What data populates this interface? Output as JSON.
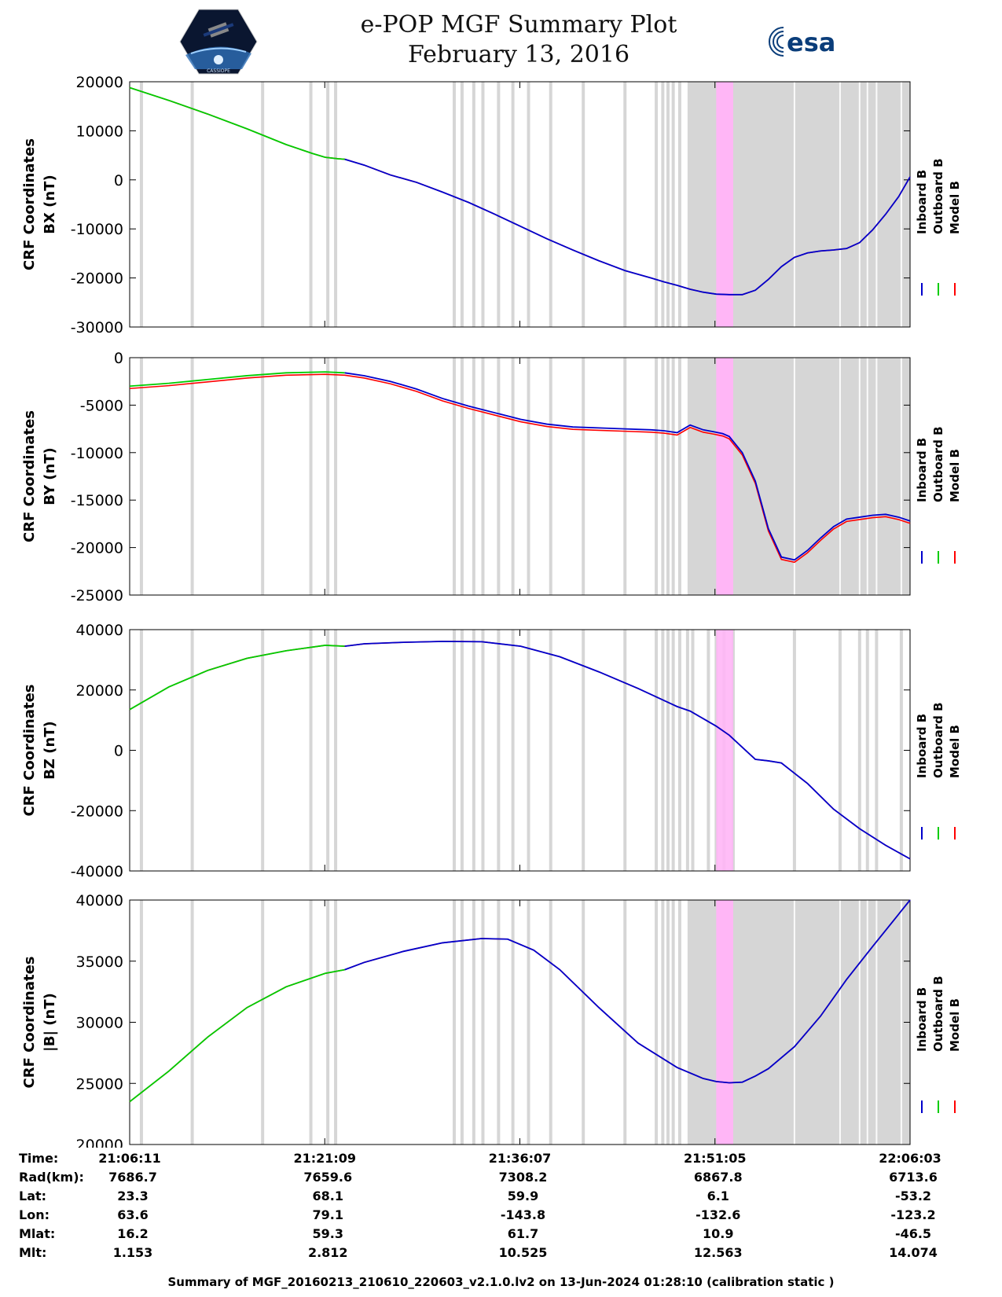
{
  "header": {
    "title_line1": "e-POP MGF Summary Plot",
    "title_line2": "February 13, 2016",
    "left_logo_text": "CASSIOPE",
    "right_logo_text": "esa"
  },
  "legend": {
    "labels": [
      "Inboard B",
      "Outboard B",
      "Model B"
    ],
    "colors": [
      "#0000cc",
      "#00cc00",
      "#ff0000"
    ]
  },
  "time_axis": {
    "labels": [
      "21:06:11",
      "21:21:09",
      "21:36:07",
      "21:51:05",
      "22:06:03"
    ],
    "start_min": 0,
    "end_min": 59.87
  },
  "shading": {
    "gray_color": "#d6d6d6",
    "magenta_color": "#ffb6f6",
    "gray_lines_min": [
      0.9,
      4.8,
      10.2,
      13.9,
      15.2,
      15.8,
      24.9,
      25.5,
      26.4,
      27.1,
      28.3,
      29.4,
      30.6,
      32.3,
      34.8,
      38.0,
      40.4,
      40.9,
      41.3,
      41.7,
      42.2
    ],
    "gray_block_min": [
      42.8,
      59.87
    ],
    "gray_lines_in_block_min": [
      51.0,
      54.5,
      56.0,
      56.6,
      57.3,
      59.2
    ],
    "magenta_block_min": [
      45.0,
      46.3
    ],
    "panels_with_block": [
      0,
      1,
      3
    ]
  },
  "chart_data": [
    {
      "type": "line",
      "ylabel": "CRF Coordinates\nBX (nT)",
      "ylim": [
        -30000,
        20000
      ],
      "yticks": [
        20000,
        10000,
        0,
        -10000,
        -20000,
        -30000
      ],
      "switch_min": 16.5,
      "series": [
        {
          "name": "Model B",
          "color": "#ff0000",
          "offset": 0
        },
        {
          "name": "Outboard B",
          "color": "#00cc00"
        },
        {
          "name": "Inboard B",
          "color": "#0000cc"
        }
      ],
      "x": [
        0,
        3,
        6,
        9,
        12,
        14,
        15,
        16,
        16.5,
        18,
        20,
        22,
        24,
        26,
        28,
        30,
        32,
        34,
        36,
        38,
        40,
        41,
        42,
        43,
        44,
        45,
        46,
        47,
        48,
        49,
        50,
        51,
        52,
        53,
        54,
        55,
        56,
        57,
        58,
        59,
        59.87
      ],
      "values": [
        18800,
        16200,
        13400,
        10400,
        7200,
        5400,
        4600,
        4300,
        4200,
        3000,
        1000,
        -500,
        -2500,
        -4600,
        -7000,
        -9500,
        -12000,
        -14300,
        -16500,
        -18500,
        -20000,
        -20800,
        -21500,
        -22300,
        -22900,
        -23300,
        -23400,
        -23400,
        -22500,
        -20300,
        -17700,
        -15800,
        -14900,
        -14500,
        -14300,
        -14000,
        -12800,
        -10200,
        -7000,
        -3400,
        600
      ]
    },
    {
      "type": "line",
      "ylabel": "CRF Coordinates\nBY (nT)",
      "ylim": [
        -25000,
        0
      ],
      "yticks": [
        0,
        -5000,
        -10000,
        -15000,
        -20000,
        -25000
      ],
      "switch_min": 16.5,
      "series": [
        {
          "name": "Model B",
          "color": "#ff0000",
          "offset": -250
        },
        {
          "name": "Outboard B",
          "color": "#00cc00"
        },
        {
          "name": "Inboard B",
          "color": "#0000cc"
        }
      ],
      "x": [
        0,
        3,
        6,
        9,
        12,
        15,
        16.5,
        18,
        20,
        22,
        24,
        26,
        28,
        30,
        32,
        34,
        36,
        38,
        40,
        41,
        42,
        43,
        44,
        44.8,
        45.5,
        46,
        47,
        48,
        49,
        50,
        51,
        52,
        53,
        54,
        55,
        56,
        57,
        58,
        59,
        59.87
      ],
      "values": [
        -3000,
        -2700,
        -2300,
        -1900,
        -1600,
        -1500,
        -1600,
        -1900,
        -2500,
        -3300,
        -4300,
        -5100,
        -5800,
        -6500,
        -7000,
        -7300,
        -7400,
        -7500,
        -7600,
        -7700,
        -7900,
        -7100,
        -7600,
        -7800,
        -8000,
        -8300,
        -10000,
        -13000,
        -18000,
        -21000,
        -21300,
        -20300,
        -19000,
        -17800,
        -17000,
        -16800,
        -16600,
        -16500,
        -16800,
        -17200
      ]
    },
    {
      "type": "line",
      "ylabel": "CRF Coordinates\nBZ (nT)",
      "ylim": [
        -40000,
        40000
      ],
      "yticks": [
        40000,
        20000,
        0,
        -20000,
        -40000
      ],
      "switch_min": 16.5,
      "series": [
        {
          "name": "Model B",
          "color": "#ff0000",
          "offset": 0
        },
        {
          "name": "Outboard B",
          "color": "#00cc00"
        },
        {
          "name": "Inboard B",
          "color": "#0000cc"
        }
      ],
      "x": [
        0,
        3,
        6,
        9,
        12,
        15,
        16.5,
        18,
        21,
        24,
        27,
        30,
        33,
        36,
        39,
        41,
        42,
        43,
        44,
        45,
        46,
        47,
        48,
        49,
        50,
        52,
        54,
        56,
        58,
        59.87
      ],
      "values": [
        13500,
        21000,
        26500,
        30500,
        33000,
        34800,
        34500,
        35300,
        35800,
        36100,
        36000,
        34500,
        31000,
        26000,
        20500,
        16500,
        14500,
        13000,
        10500,
        8000,
        5000,
        1000,
        -3000,
        -3500,
        -4200,
        -11000,
        -19500,
        -26000,
        -31500,
        -36000
      ]
    },
    {
      "type": "line",
      "ylabel": "CRF Coordinates\n|B| (nT)",
      "ylim": [
        20000,
        40000
      ],
      "yticks": [
        40000,
        35000,
        30000,
        25000,
        20000
      ],
      "switch_min": 16.5,
      "series": [
        {
          "name": "Model B",
          "color": "#ff0000",
          "offset": 0
        },
        {
          "name": "Outboard B",
          "color": "#00cc00"
        },
        {
          "name": "Inboard B",
          "color": "#0000cc"
        }
      ],
      "x": [
        0,
        3,
        6,
        9,
        12,
        15,
        16.5,
        18,
        21,
        24,
        27,
        29,
        31,
        33,
        36,
        39,
        42,
        44,
        45,
        46,
        47,
        48,
        49,
        51,
        53,
        55,
        57,
        59.87
      ],
      "values": [
        23500,
        26000,
        28800,
        31200,
        32900,
        34000,
        34300,
        34900,
        35800,
        36500,
        36850,
        36800,
        35900,
        34300,
        31200,
        28300,
        26300,
        25400,
        25150,
        25050,
        25100,
        25600,
        26200,
        28000,
        30500,
        33500,
        36200,
        40000
      ]
    }
  ],
  "info_table": {
    "row_labels": [
      "Time:",
      "Rad(km):",
      "Lat:",
      "Lon:",
      "Mlat:",
      "Mlt:"
    ],
    "rows": [
      [
        "21:06:11",
        "21:21:09",
        "21:36:07",
        "21:51:05",
        "22:06:03"
      ],
      [
        "7686.7",
        "7659.6",
        "7308.2",
        "6867.8",
        "6713.6"
      ],
      [
        "23.3",
        "68.1",
        "59.9",
        "6.1",
        "-53.2"
      ],
      [
        "63.6",
        "79.1",
        "-143.8",
        "-132.6",
        "-123.2"
      ],
      [
        "16.2",
        "59.3",
        "61.7",
        "10.9",
        "-46.5"
      ],
      [
        "1.153",
        "2.812",
        "10.525",
        "12.563",
        "14.074"
      ]
    ]
  },
  "footer": "Summary of MGF_20160213_210610_220603_v2.1.0.lv2 on 13-Jun-2024 01:28:10 (calibration static )"
}
